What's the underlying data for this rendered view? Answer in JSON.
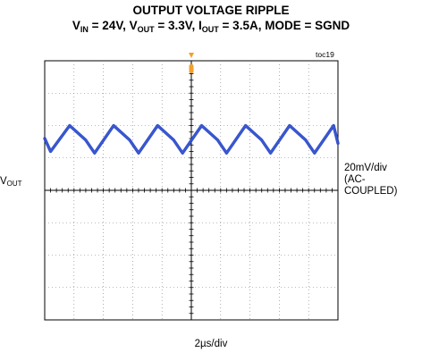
{
  "title": {
    "line1": "OUTPUT VOLTAGE RIPPLE",
    "v_in_label": "V",
    "v_in_sub": "IN",
    "v_in_val": " = 24V, ",
    "v_out_label": "V",
    "v_out_sub": "OUT",
    "v_out_val": " = 3.3V, ",
    "i_out_label": "I",
    "i_out_sub": "OUT",
    "i_out_val": " = 3.5A, MODE = SGND"
  },
  "figure_id": "toc19",
  "channel_label": {
    "main": "V",
    "sub": "OUT"
  },
  "vertical_scale": [
    "20mV/div",
    "(AC-",
    "COUPLED)"
  ],
  "horizontal_scale": "2µs/div",
  "colors": {
    "trace": "#1f3fbf",
    "grid": "#000000",
    "trigger_marker": "#f0a030",
    "background": "#ffffff"
  },
  "chart_data": {
    "type": "line",
    "title": "OUTPUT VOLTAGE RIPPLE",
    "xlabel": "2µs/div",
    "ylabel": "VOUT",
    "x_divisions": 10,
    "y_divisions": 8,
    "x_unit": "µs",
    "x_per_div": 2,
    "xlim": [
      0,
      20
    ],
    "y_unit": "mV",
    "y_per_div": 20,
    "ylim": [
      -80,
      80
    ],
    "coupling": "AC",
    "grid": true,
    "series": [
      {
        "x": [
          0,
          0.4,
          1.7,
          2.8,
          3.4,
          4.7,
          5.8,
          6.4,
          7.7,
          8.8,
          9.4,
          10.7,
          11.8,
          12.4,
          13.7,
          14.8,
          15.4,
          16.7,
          17.8,
          18.4,
          19.7,
          20
        ],
        "y": [
          32,
          24,
          40,
          31,
          23,
          40,
          31,
          23,
          40,
          31,
          23,
          40,
          31,
          23,
          40,
          31,
          23,
          40,
          31,
          23,
          40,
          29
        ]
      }
    ]
  }
}
